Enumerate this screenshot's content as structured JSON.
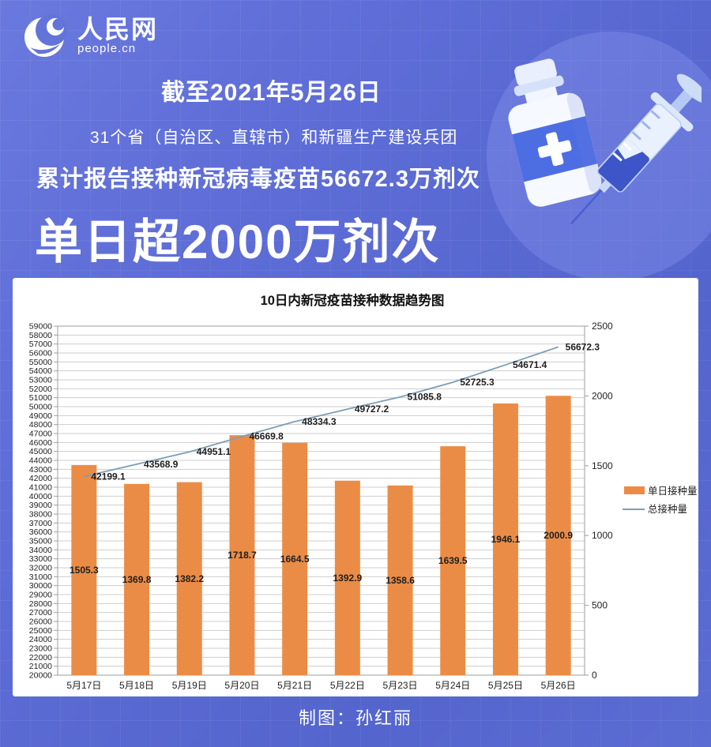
{
  "header": {
    "logo_cn": "人民网",
    "logo_en": "people.cn"
  },
  "banner": {
    "date_line": "截至2021年5月26日",
    "scope_line": "31个省（自治区、直辖市）和新疆生产建设兵团",
    "total_line": "累计报告接种新冠病毒疫苗56672.3万剂次",
    "headline": "单日超2000万剂次"
  },
  "footer": {
    "credit": "制图：孙红丽"
  },
  "colors": {
    "background": "#5b6cd2",
    "bar": "#EB8C46",
    "line": "#7D9EB7",
    "panel": "#ffffff",
    "grid": "#cdcdcd",
    "axis": "#9e9e9e",
    "label_text": "#1f1f1f"
  },
  "chart_data": {
    "type": "bar",
    "subtype": "combo bar+line, dual axis",
    "title": "10日内新冠疫苗接种数据趋势图",
    "categories": [
      "5月17日",
      "5月18日",
      "5月19日",
      "5月20日",
      "5月21日",
      "5月22日",
      "5月23日",
      "5月24日",
      "5月25日",
      "5月26日"
    ],
    "series": [
      {
        "name": "单日接种量",
        "type": "bar",
        "axis": "right",
        "color": "#EB8C46",
        "values": [
          1505.3,
          1369.8,
          1382.2,
          1718.7,
          1664.5,
          1392.9,
          1358.6,
          1639.5,
          1946.1,
          2000.9
        ]
      },
      {
        "name": "总接种量",
        "type": "line",
        "axis": "left",
        "color": "#7D9EB7",
        "values": [
          42199.1,
          43568.9,
          44951.1,
          46669.8,
          48334.3,
          49727.2,
          51085.8,
          52725.3,
          54671.4,
          56672.3
        ]
      }
    ],
    "left_axis": {
      "min": 20000,
      "max": 59000,
      "step": 1000
    },
    "right_axis": {
      "min": 0,
      "max": 2500,
      "step": 500
    },
    "grid": true,
    "legend_position": "right",
    "data_labels": true
  }
}
